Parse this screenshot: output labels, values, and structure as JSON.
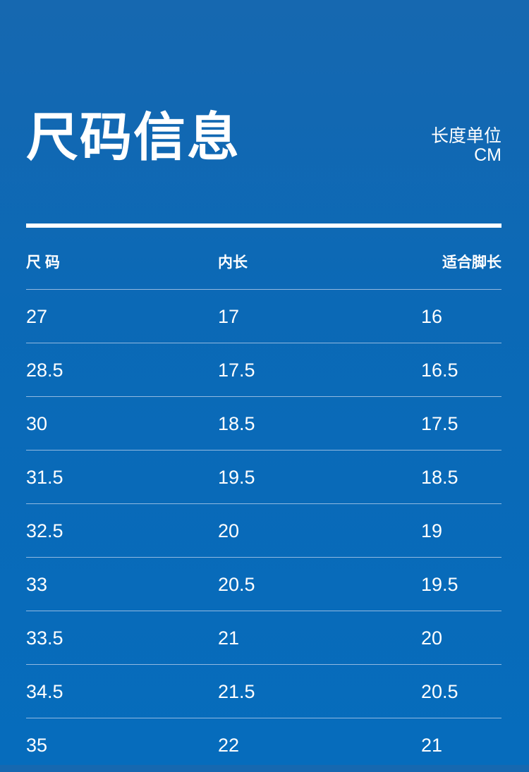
{
  "title": "尺码信息",
  "unit": {
    "label": "长度单位",
    "value": "CM"
  },
  "table": {
    "headers": [
      "尺 码",
      "内长",
      "适合脚长"
    ],
    "rows": [
      [
        "27",
        "17",
        "16"
      ],
      [
        "28.5",
        "17.5",
        "16.5"
      ],
      [
        "30",
        "18.5",
        "17.5"
      ],
      [
        "31.5",
        "19.5",
        "18.5"
      ],
      [
        "32.5",
        "20",
        "19"
      ],
      [
        "33",
        "20.5",
        "19.5"
      ],
      [
        "33.5",
        "21",
        "20"
      ],
      [
        "34.5",
        "21.5",
        "20.5"
      ],
      [
        "35",
        "22",
        "21"
      ]
    ]
  }
}
